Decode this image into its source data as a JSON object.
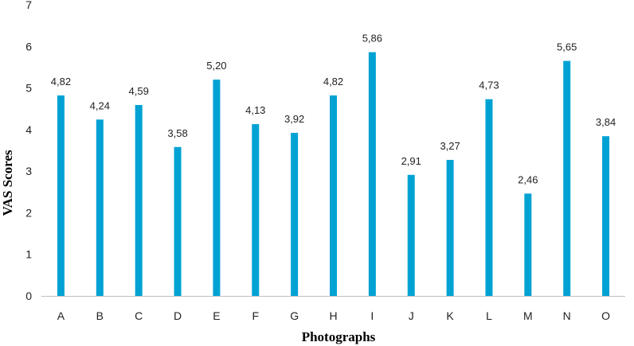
{
  "chart_data": {
    "type": "bar",
    "categories": [
      "A",
      "B",
      "C",
      "D",
      "E",
      "F",
      "G",
      "H",
      "I",
      "J",
      "K",
      "L",
      "M",
      "N",
      "O"
    ],
    "values": [
      4.82,
      4.24,
      4.59,
      3.58,
      5.2,
      4.13,
      3.92,
      4.82,
      5.86,
      2.91,
      3.27,
      4.73,
      2.46,
      5.65,
      3.84
    ],
    "data_labels": [
      "4,82",
      "4,24",
      "4,59",
      "3,58",
      "5,20",
      "4,13",
      "3,92",
      "4,82",
      "5,86",
      "2,91",
      "3,27",
      "4,73",
      "2,46",
      "5,65",
      "3,84"
    ],
    "xlabel": "Photographs",
    "ylabel": "VAS Scores",
    "ylim": [
      0,
      7
    ],
    "yticks": [
      "0",
      "1",
      "2",
      "3",
      "4",
      "5",
      "6",
      "7"
    ],
    "grid": false,
    "legend": "none",
    "bar_color": "#00a2d4",
    "axis_color": "#bfbfbf"
  }
}
